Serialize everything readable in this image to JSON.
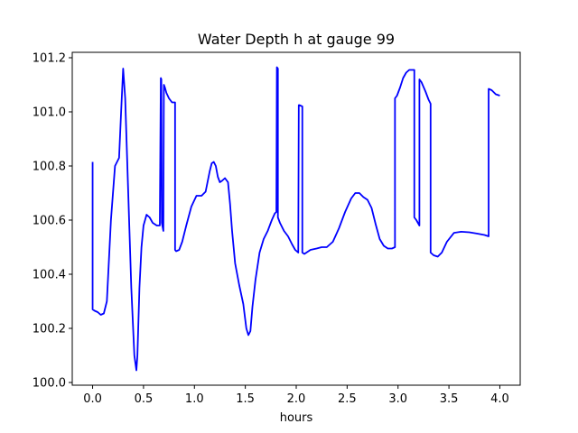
{
  "chart_data": {
    "type": "line",
    "title": "Water Depth h at gauge 99",
    "xlabel": "hours",
    "ylabel": "",
    "xlim": [
      -0.2,
      4.2
    ],
    "ylim": [
      99.99,
      101.22
    ],
    "xticks": [
      0.0,
      0.5,
      1.0,
      1.5,
      2.0,
      2.5,
      3.0,
      3.5,
      4.0
    ],
    "xtick_labels": [
      "0.0",
      "0.5",
      "1.0",
      "1.5",
      "2.0",
      "2.5",
      "3.0",
      "3.5",
      "4.0"
    ],
    "yticks": [
      100.0,
      100.2,
      100.4,
      100.6,
      100.8,
      101.0,
      101.2
    ],
    "ytick_labels": [
      "100.0",
      "100.2",
      "100.4",
      "100.6",
      "100.8",
      "101.0",
      "101.2"
    ],
    "grid": false,
    "series": [
      {
        "color": "#0000ff",
        "x": [
          0.0,
          0.0,
          0.02,
          0.05,
          0.08,
          0.11,
          0.14,
          0.18,
          0.22,
          0.26,
          0.28,
          0.3,
          0.32,
          0.35,
          0.38,
          0.41,
          0.43,
          0.44,
          0.46,
          0.48,
          0.5,
          0.53,
          0.56,
          0.59,
          0.63,
          0.66,
          0.67,
          0.675,
          0.68,
          0.69,
          0.695,
          0.7,
          0.71,
          0.725,
          0.75,
          0.78,
          0.81,
          0.81,
          0.82,
          0.85,
          0.88,
          0.92,
          0.97,
          1.02,
          1.07,
          1.11,
          1.15,
          1.17,
          1.19,
          1.21,
          1.23,
          1.25,
          1.27,
          1.3,
          1.33,
          1.35,
          1.37,
          1.4,
          1.44,
          1.48,
          1.51,
          1.53,
          1.55,
          1.57,
          1.6,
          1.64,
          1.68,
          1.72,
          1.76,
          1.79,
          1.805,
          1.81,
          1.82,
          1.82,
          1.84,
          1.88,
          1.92,
          1.96,
          1.99,
          2.02,
          2.025,
          2.03,
          2.06,
          2.06,
          2.08,
          2.08,
          2.1,
          2.14,
          2.2,
          2.25,
          2.3,
          2.36,
          2.42,
          2.48,
          2.54,
          2.58,
          2.62,
          2.66,
          2.7,
          2.74,
          2.78,
          2.82,
          2.86,
          2.9,
          2.94,
          2.97,
          2.97,
          2.99,
          3.02,
          3.05,
          3.08,
          3.11,
          3.14,
          3.16,
          3.16,
          3.18,
          3.21,
          3.21,
          3.23,
          3.27,
          3.3,
          3.32,
          3.32,
          3.35,
          3.39,
          3.43,
          3.48,
          3.55,
          3.62,
          3.7,
          3.78,
          3.85,
          3.89,
          3.89,
          3.92,
          3.96,
          4.0
        ],
        "y": [
          100.815,
          100.27,
          100.265,
          100.26,
          100.25,
          100.255,
          100.3,
          100.6,
          100.8,
          100.83,
          101.0,
          101.16,
          101.05,
          100.7,
          100.35,
          100.1,
          100.045,
          100.1,
          100.35,
          100.5,
          100.58,
          100.62,
          100.61,
          100.59,
          100.58,
          100.58,
          101.125,
          101.12,
          100.59,
          100.57,
          100.56,
          101.1,
          101.09,
          101.07,
          101.05,
          101.035,
          101.035,
          100.49,
          100.485,
          100.49,
          100.52,
          100.58,
          100.65,
          100.69,
          100.69,
          100.705,
          100.78,
          100.81,
          100.815,
          100.8,
          100.76,
          100.74,
          100.745,
          100.755,
          100.74,
          100.66,
          100.56,
          100.44,
          100.36,
          100.29,
          100.2,
          100.175,
          100.19,
          100.28,
          100.38,
          100.48,
          100.53,
          100.56,
          100.6,
          100.625,
          100.63,
          101.165,
          101.16,
          100.61,
          100.59,
          100.56,
          100.54,
          100.51,
          100.49,
          100.48,
          101.025,
          101.025,
          101.02,
          100.48,
          100.475,
          100.475,
          100.48,
          100.49,
          100.495,
          100.5,
          100.5,
          100.52,
          100.57,
          100.63,
          100.68,
          100.7,
          100.7,
          100.685,
          100.675,
          100.645,
          100.585,
          100.53,
          100.505,
          100.495,
          100.495,
          100.5,
          101.05,
          101.06,
          101.09,
          101.125,
          101.145,
          101.155,
          101.155,
          101.155,
          100.61,
          100.6,
          100.58,
          101.12,
          101.11,
          101.075,
          101.045,
          101.03,
          100.48,
          100.47,
          100.465,
          100.48,
          100.52,
          100.553,
          100.557,
          100.555,
          100.55,
          100.545,
          100.54,
          101.085,
          101.08,
          101.065,
          101.06
        ]
      }
    ]
  }
}
